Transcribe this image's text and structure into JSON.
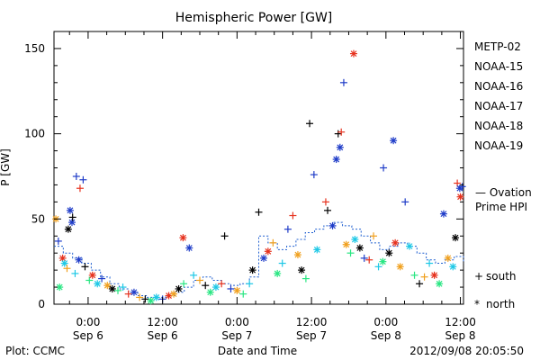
{
  "chart_data": {
    "type": "scatter",
    "title": "Hemispheric Power [GW]",
    "xlabel": "Date and Time",
    "ylabel": "P [GW]",
    "ylim": [
      0,
      160
    ],
    "yticks": [
      0,
      50,
      100,
      150
    ],
    "xlim_hours": [
      -5.5,
      60.5
    ],
    "x_unit_note": "hours since 2012-09-06 00:00",
    "xticks": [
      {
        "h": 0,
        "time": "0:00",
        "date": "Sep 6"
      },
      {
        "h": 12,
        "time": "12:00",
        "date": "Sep 6"
      },
      {
        "h": 24,
        "time": "0:00",
        "date": "Sep 7"
      },
      {
        "h": 36,
        "time": "12:00",
        "date": "Sep 7"
      },
      {
        "h": 48,
        "time": "0:00",
        "date": "Sep 8"
      },
      {
        "h": 60,
        "time": "12:00",
        "date": "Sep 8"
      }
    ],
    "legend_position": "right",
    "series": [
      {
        "name": "METP-02",
        "color": "#000000"
      },
      {
        "name": "NOAA-15",
        "color": "#1f3cc8"
      },
      {
        "name": "NOAA-16",
        "color": "#1ec8e6"
      },
      {
        "name": "NOAA-17",
        "color": "#28e682"
      },
      {
        "name": "NOAA-18",
        "color": "#f0a01e"
      },
      {
        "name": "NOAA-19",
        "color": "#e6321e"
      }
    ],
    "ovation": {
      "label_line1": "— Ovation",
      "label_line2": "Prime HPI",
      "color": "#1f5fd0"
    },
    "markers": {
      "south_symbol": "+",
      "south_label": "south",
      "north_symbol": "*",
      "north_label": "north"
    },
    "points": [
      {
        "s": 1,
        "m": "+",
        "x": -4.8,
        "y": 37
      },
      {
        "s": 1,
        "m": "*",
        "x": -2.9,
        "y": 55
      },
      {
        "s": 1,
        "m": "+",
        "x": -1.9,
        "y": 75
      },
      {
        "s": 1,
        "m": "+",
        "x": -0.8,
        "y": 73
      },
      {
        "s": 1,
        "m": "*",
        "x": -2.6,
        "y": 48
      },
      {
        "s": 0,
        "m": "+",
        "x": -2.5,
        "y": 51
      },
      {
        "s": 0,
        "m": "*",
        "x": -3.2,
        "y": 44
      },
      {
        "s": 5,
        "m": "+",
        "x": -1.3,
        "y": 68
      },
      {
        "s": 4,
        "m": "*",
        "x": -5.2,
        "y": 50
      },
      {
        "s": 5,
        "m": "*",
        "x": -4.1,
        "y": 27
      },
      {
        "s": 2,
        "m": "*",
        "x": -3.8,
        "y": 24
      },
      {
        "s": 3,
        "m": "*",
        "x": -4.6,
        "y": 10
      },
      {
        "s": 4,
        "m": "+",
        "x": -3.4,
        "y": 21
      },
      {
        "s": 2,
        "m": "+",
        "x": -2.1,
        "y": 18
      },
      {
        "s": 1,
        "m": "*",
        "x": -1.5,
        "y": 26
      },
      {
        "s": 0,
        "m": "+",
        "x": -0.5,
        "y": 22
      },
      {
        "s": 3,
        "m": "+",
        "x": 0.2,
        "y": 14
      },
      {
        "s": 5,
        "m": "*",
        "x": 0.7,
        "y": 17
      },
      {
        "s": 2,
        "m": "*",
        "x": 1.5,
        "y": 12
      },
      {
        "s": 1,
        "m": "+",
        "x": 2.2,
        "y": 15
      },
      {
        "s": 4,
        "m": "*",
        "x": 3.1,
        "y": 11
      },
      {
        "s": 0,
        "m": "*",
        "x": 3.9,
        "y": 9
      },
      {
        "s": 3,
        "m": "+",
        "x": 4.8,
        "y": 8
      },
      {
        "s": 2,
        "m": "+",
        "x": 5.6,
        "y": 10
      },
      {
        "s": 5,
        "m": "+",
        "x": 6.5,
        "y": 6
      },
      {
        "s": 1,
        "m": "*",
        "x": 7.4,
        "y": 7
      },
      {
        "s": 4,
        "m": "+",
        "x": 8.3,
        "y": 4
      },
      {
        "s": 0,
        "m": "+",
        "x": 9.2,
        "y": 3
      },
      {
        "s": 3,
        "m": "*",
        "x": 10.1,
        "y": 2
      },
      {
        "s": 2,
        "m": "*",
        "x": 11.0,
        "y": 4
      },
      {
        "s": 1,
        "m": "+",
        "x": 12.0,
        "y": 3
      },
      {
        "s": 5,
        "m": "*",
        "x": 13.0,
        "y": 5
      },
      {
        "s": 4,
        "m": "*",
        "x": 13.8,
        "y": 6
      },
      {
        "s": 0,
        "m": "*",
        "x": 14.6,
        "y": 9
      },
      {
        "s": 3,
        "m": "+",
        "x": 15.4,
        "y": 12
      },
      {
        "s": 5,
        "m": "*",
        "x": 15.3,
        "y": 39
      },
      {
        "s": 1,
        "m": "*",
        "x": 16.3,
        "y": 33
      },
      {
        "s": 2,
        "m": "+",
        "x": 17.0,
        "y": 17
      },
      {
        "s": 4,
        "m": "+",
        "x": 18.0,
        "y": 14
      },
      {
        "s": 0,
        "m": "+",
        "x": 18.9,
        "y": 11
      },
      {
        "s": 3,
        "m": "*",
        "x": 19.7,
        "y": 7
      },
      {
        "s": 2,
        "m": "*",
        "x": 20.6,
        "y": 10
      },
      {
        "s": 5,
        "m": "+",
        "x": 21.5,
        "y": 12
      },
      {
        "s": 0,
        "m": "+",
        "x": 22.0,
        "y": 40
      },
      {
        "s": 1,
        "m": "+",
        "x": 23.0,
        "y": 9
      },
      {
        "s": 4,
        "m": "*",
        "x": 24.0,
        "y": 8
      },
      {
        "s": 3,
        "m": "+",
        "x": 25.0,
        "y": 6
      },
      {
        "s": 2,
        "m": "+",
        "x": 26.0,
        "y": 12
      },
      {
        "s": 0,
        "m": "*",
        "x": 26.5,
        "y": 20
      },
      {
        "s": 0,
        "m": "+",
        "x": 27.5,
        "y": 54
      },
      {
        "s": 1,
        "m": "*",
        "x": 28.3,
        "y": 27
      },
      {
        "s": 5,
        "m": "*",
        "x": 29.0,
        "y": 31
      },
      {
        "s": 4,
        "m": "+",
        "x": 29.8,
        "y": 36
      },
      {
        "s": 3,
        "m": "*",
        "x": 30.5,
        "y": 18
      },
      {
        "s": 2,
        "m": "+",
        "x": 31.3,
        "y": 24
      },
      {
        "s": 1,
        "m": "+",
        "x": 32.2,
        "y": 44
      },
      {
        "s": 5,
        "m": "+",
        "x": 33.0,
        "y": 52
      },
      {
        "s": 4,
        "m": "*",
        "x": 33.8,
        "y": 29
      },
      {
        "s": 0,
        "m": "*",
        "x": 34.4,
        "y": 20
      },
      {
        "s": 3,
        "m": "+",
        "x": 35.1,
        "y": 15
      },
      {
        "s": 0,
        "m": "+",
        "x": 35.7,
        "y": 106
      },
      {
        "s": 1,
        "m": "+",
        "x": 36.4,
        "y": 76
      },
      {
        "s": 2,
        "m": "*",
        "x": 36.9,
        "y": 32
      },
      {
        "s": 5,
        "m": "+",
        "x": 38.3,
        "y": 60
      },
      {
        "s": 1,
        "m": "*",
        "x": 39.4,
        "y": 46
      },
      {
        "s": 0,
        "m": "+",
        "x": 38.6,
        "y": 55
      },
      {
        "s": 1,
        "m": "*",
        "x": 40.0,
        "y": 85
      },
      {
        "s": 1,
        "m": "*",
        "x": 40.6,
        "y": 92
      },
      {
        "s": 0,
        "m": "+",
        "x": 40.3,
        "y": 100
      },
      {
        "s": 5,
        "m": "+",
        "x": 40.8,
        "y": 101
      },
      {
        "s": 1,
        "m": "+",
        "x": 41.2,
        "y": 130
      },
      {
        "s": 5,
        "m": "*",
        "x": 42.8,
        "y": 147
      },
      {
        "s": 4,
        "m": "*",
        "x": 41.6,
        "y": 35
      },
      {
        "s": 3,
        "m": "+",
        "x": 42.3,
        "y": 30
      },
      {
        "s": 2,
        "m": "*",
        "x": 43.0,
        "y": 38
      },
      {
        "s": 0,
        "m": "*",
        "x": 43.8,
        "y": 33
      },
      {
        "s": 1,
        "m": "+",
        "x": 44.5,
        "y": 27
      },
      {
        "s": 5,
        "m": "+",
        "x": 45.3,
        "y": 26
      },
      {
        "s": 4,
        "m": "+",
        "x": 46.0,
        "y": 40
      },
      {
        "s": 2,
        "m": "+",
        "x": 46.8,
        "y": 22
      },
      {
        "s": 3,
        "m": "*",
        "x": 47.5,
        "y": 25
      },
      {
        "s": 1,
        "m": "+",
        "x": 47.6,
        "y": 80
      },
      {
        "s": 1,
        "m": "*",
        "x": 49.2,
        "y": 96
      },
      {
        "s": 0,
        "m": "*",
        "x": 48.5,
        "y": 30
      },
      {
        "s": 5,
        "m": "*",
        "x": 49.5,
        "y": 36
      },
      {
        "s": 4,
        "m": "*",
        "x": 50.3,
        "y": 22
      },
      {
        "s": 1,
        "m": "+",
        "x": 51.1,
        "y": 60
      },
      {
        "s": 2,
        "m": "*",
        "x": 51.8,
        "y": 34
      },
      {
        "s": 3,
        "m": "+",
        "x": 52.6,
        "y": 17
      },
      {
        "s": 0,
        "m": "+",
        "x": 53.4,
        "y": 12
      },
      {
        "s": 4,
        "m": "+",
        "x": 54.2,
        "y": 16
      },
      {
        "s": 2,
        "m": "+",
        "x": 55.0,
        "y": 24
      },
      {
        "s": 5,
        "m": "*",
        "x": 55.8,
        "y": 17
      },
      {
        "s": 3,
        "m": "*",
        "x": 56.6,
        "y": 12
      },
      {
        "s": 1,
        "m": "*",
        "x": 57.3,
        "y": 53
      },
      {
        "s": 4,
        "m": "*",
        "x": 58.0,
        "y": 27
      },
      {
        "s": 2,
        "m": "*",
        "x": 58.8,
        "y": 22
      },
      {
        "s": 5,
        "m": "+",
        "x": 59.5,
        "y": 71
      },
      {
        "s": 1,
        "m": "*",
        "x": 59.9,
        "y": 68
      },
      {
        "s": 1,
        "m": "+",
        "x": 60.3,
        "y": 69
      },
      {
        "s": 5,
        "m": "*",
        "x": 60.0,
        "y": 63
      },
      {
        "s": 0,
        "m": "*",
        "x": 59.2,
        "y": 39
      },
      {
        "s": 1,
        "m": "+",
        "x": 60.8,
        "y": 55
      },
      {
        "s": 4,
        "m": "+",
        "x": 61.4,
        "y": 30
      },
      {
        "s": 3,
        "m": "+",
        "x": 62.0,
        "y": 15
      },
      {
        "s": 5,
        "m": "*",
        "x": 62.4,
        "y": 8
      },
      {
        "s": 0,
        "m": "*",
        "x": 61.0,
        "y": 18
      }
    ],
    "ovation_points": [
      [
        -5.5,
        34
      ],
      [
        -4,
        30
      ],
      [
        -2.5,
        27
      ],
      [
        -1,
        24
      ],
      [
        0.5,
        20
      ],
      [
        2,
        16
      ],
      [
        3.5,
        12
      ],
      [
        5,
        9
      ],
      [
        6.5,
        7
      ],
      [
        8,
        5
      ],
      [
        9.5,
        4
      ],
      [
        11,
        4
      ],
      [
        12.5,
        5
      ],
      [
        14,
        7
      ],
      [
        15.5,
        10
      ],
      [
        17,
        14
      ],
      [
        18.5,
        16
      ],
      [
        20,
        14
      ],
      [
        21.5,
        12
      ],
      [
        23,
        11
      ],
      [
        24.5,
        12
      ],
      [
        26,
        16
      ],
      [
        27.5,
        40
      ],
      [
        29,
        36
      ],
      [
        30.5,
        32
      ],
      [
        32,
        34
      ],
      [
        33.5,
        38
      ],
      [
        35,
        42
      ],
      [
        36.5,
        44
      ],
      [
        38,
        46
      ],
      [
        39.5,
        48
      ],
      [
        41,
        46
      ],
      [
        42.5,
        44
      ],
      [
        44,
        40
      ],
      [
        45.5,
        36
      ],
      [
        47,
        32
      ],
      [
        48.5,
        34
      ],
      [
        50,
        36
      ],
      [
        51.5,
        34
      ],
      [
        53,
        30
      ],
      [
        54.5,
        26
      ],
      [
        56,
        24
      ],
      [
        57.5,
        26
      ],
      [
        59,
        28
      ],
      [
        60.5,
        24
      ]
    ]
  },
  "footer": {
    "left": "Plot: CCMC",
    "right": "2012/09/08 20:05:50"
  }
}
